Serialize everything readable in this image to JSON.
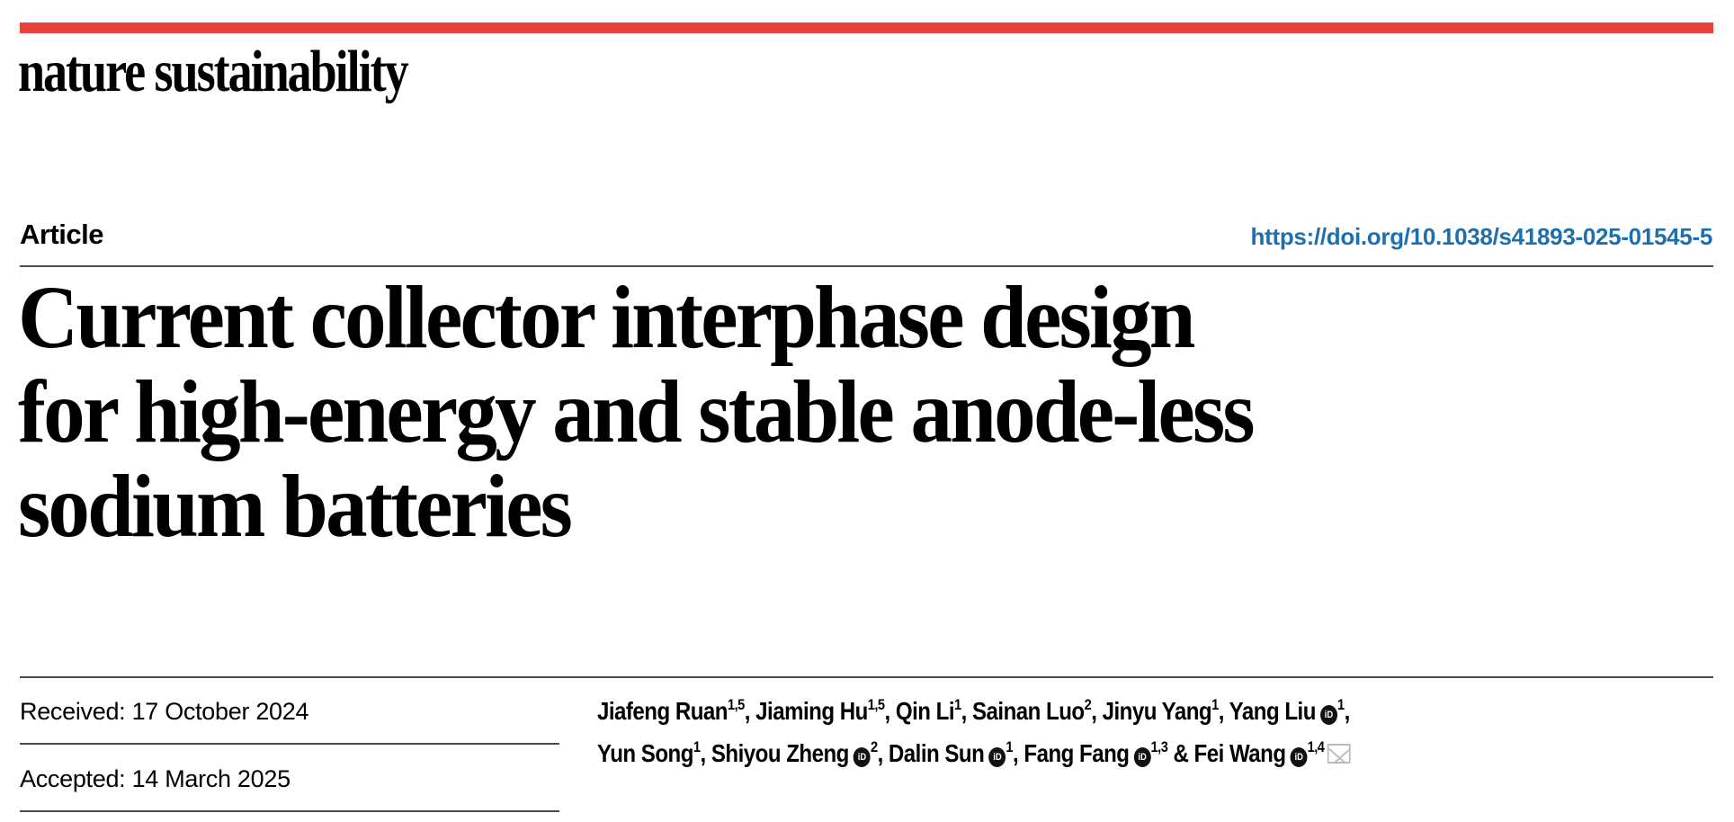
{
  "journal": {
    "name": "nature sustainability",
    "accent_color": "#e8433a"
  },
  "article": {
    "type": "Article",
    "doi": "https://doi.org/10.1038/s41893-025-01545-5",
    "title_lines": [
      "Current collector interphase design",
      "for high-energy and stable anode-less",
      "sodium batteries"
    ],
    "received": "Received: 17 October 2024",
    "accepted": "Accepted: 14 March 2025"
  },
  "authors": [
    {
      "name": "Jiafeng Ruan",
      "aff": "1,5",
      "orcid": false,
      "sep": ", "
    },
    {
      "name": "Jiaming Hu",
      "aff": "1,5",
      "orcid": false,
      "sep": ", "
    },
    {
      "name": "Qin Li",
      "aff": "1",
      "orcid": false,
      "sep": ", "
    },
    {
      "name": "Sainan Luo",
      "aff": "2",
      "orcid": false,
      "sep": ", "
    },
    {
      "name": "Jinyu Yang",
      "aff": "1",
      "orcid": false,
      "sep": ", "
    },
    {
      "name": "Yang Liu",
      "aff": "1",
      "orcid": true,
      "sep": ","
    },
    {
      "name": "Yun Song",
      "aff": "1",
      "orcid": false,
      "sep": ", "
    },
    {
      "name": "Shiyou Zheng",
      "aff": "2",
      "orcid": true,
      "sep": ", "
    },
    {
      "name": "Dalin Sun",
      "aff": "1",
      "orcid": true,
      "sep": ", "
    },
    {
      "name": "Fang Fang",
      "aff": "1,3",
      "orcid": true,
      "sep": " & "
    },
    {
      "name": "Fei Wang",
      "aff": "1,4",
      "orcid": true,
      "sep": ""
    }
  ],
  "icons": {
    "orcid": "iD",
    "email": "envelope-icon"
  }
}
